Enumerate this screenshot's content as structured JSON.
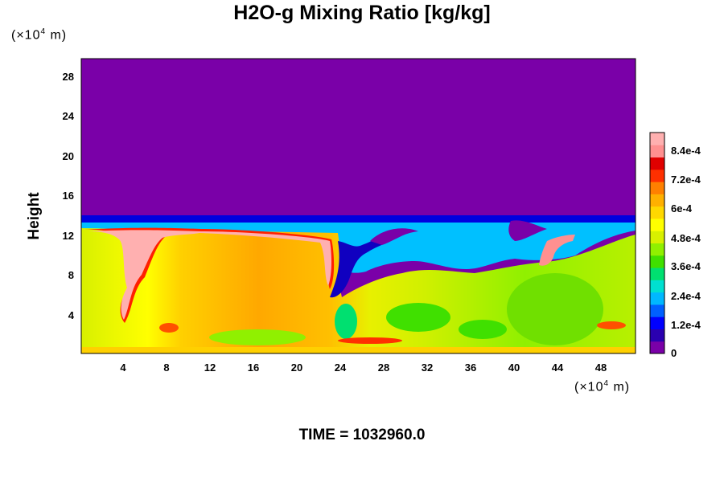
{
  "chart_data": {
    "type": "heatmap",
    "title": "H2O-g Mixing Ratio [kg/kg]",
    "ylabel": "Height",
    "y_unit": "(×10^4 m)",
    "x_unit": "(×10^4 m)",
    "x_ticks": [
      "4",
      "8",
      "12",
      "16",
      "20",
      "24",
      "28",
      "32",
      "36",
      "40",
      "44",
      "48"
    ],
    "y_ticks": [
      "4",
      "8",
      "12",
      "16",
      "20",
      "24",
      "28"
    ],
    "xlim": [
      0,
      51.5
    ],
    "ylim": [
      0,
      29.5
    ],
    "colorbar": {
      "ticks": [
        "0",
        "1.2e-4",
        "2.4e-4",
        "3.6e-4",
        "4.8e-4",
        "6e-4",
        "7.2e-4",
        "8.4e-4"
      ],
      "range": [
        0,
        0.00092
      ],
      "colors": [
        "#7a00a8",
        "#2a00b0",
        "#0000ff",
        "#0060ff",
        "#00b8ff",
        "#00e0d0",
        "#00e070",
        "#40e000",
        "#90f000",
        "#d8f000",
        "#ffff00",
        "#ffd800",
        "#ffb000",
        "#ff8000",
        "#ff3000",
        "#e00000",
        "#ff9090",
        "#ffb0b0"
      ]
    },
    "field_summary": {
      "dry_region_above_height": 14,
      "dry_value": 0
    },
    "time_label": "TIME = 1032960.0"
  }
}
